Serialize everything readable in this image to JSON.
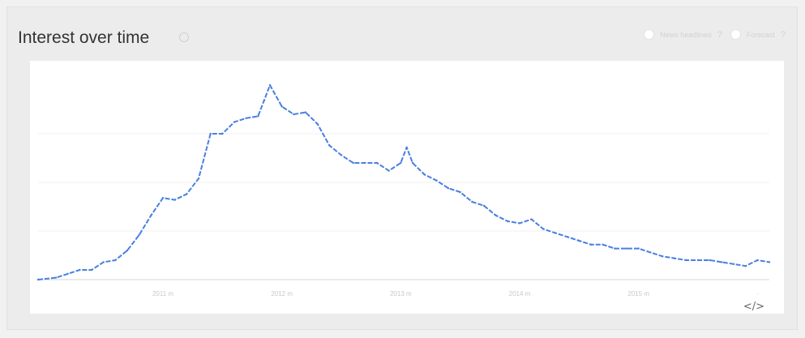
{
  "header": {
    "title": "Interest over time",
    "help_icon": "question-circle-icon",
    "controls": [
      {
        "label": "News headlines",
        "icon": "question-icon"
      },
      {
        "label": "Forecast",
        "icon": "question-icon"
      }
    ],
    "control_help_glyph": "?"
  },
  "footer": {
    "embed_icon": "embed-code-icon",
    "embed_glyph": "</>"
  },
  "colors": {
    "line": "#4a7fe0",
    "gridline": "#f2f2f2",
    "baseline": "#d6d6d6",
    "card_background": "#ececec",
    "plot_background": "#ffffff"
  },
  "chart_data": {
    "type": "line",
    "title": "Interest over time",
    "xlabel": "",
    "ylabel": "",
    "line_style": "dashed",
    "grid": true,
    "xlim": [
      2009.95,
      2016.1
    ],
    "ylim": [
      0,
      100
    ],
    "x_ticks": [
      {
        "x": 2011,
        "label": "2011 m"
      },
      {
        "x": 2012,
        "label": "2012 m"
      },
      {
        "x": 2013,
        "label": "2013 m"
      },
      {
        "x": 2014,
        "label": "2014 m"
      },
      {
        "x": 2015,
        "label": "2015 m"
      },
      {
        "x": 2016,
        "label": "·"
      }
    ],
    "series": [
      {
        "points": [
          [
            2009.95,
            0
          ],
          [
            2010.1,
            1
          ],
          [
            2010.2,
            3
          ],
          [
            2010.3,
            5
          ],
          [
            2010.4,
            5
          ],
          [
            2010.5,
            9
          ],
          [
            2010.6,
            10
          ],
          [
            2010.7,
            15
          ],
          [
            2010.8,
            23
          ],
          [
            2010.9,
            33
          ],
          [
            2011.0,
            42
          ],
          [
            2011.1,
            41
          ],
          [
            2011.2,
            44
          ],
          [
            2011.3,
            52
          ],
          [
            2011.4,
            75
          ],
          [
            2011.5,
            75
          ],
          [
            2011.6,
            81
          ],
          [
            2011.7,
            83
          ],
          [
            2011.8,
            84
          ],
          [
            2011.85,
            92
          ],
          [
            2011.9,
            100
          ],
          [
            2012.0,
            89
          ],
          [
            2012.1,
            85
          ],
          [
            2012.2,
            86
          ],
          [
            2012.3,
            80
          ],
          [
            2012.4,
            69
          ],
          [
            2012.5,
            64
          ],
          [
            2012.6,
            60
          ],
          [
            2012.7,
            60
          ],
          [
            2012.8,
            60
          ],
          [
            2012.9,
            56
          ],
          [
            2013.0,
            60
          ],
          [
            2013.05,
            68
          ],
          [
            2013.1,
            60
          ],
          [
            2013.2,
            54
          ],
          [
            2013.3,
            51
          ],
          [
            2013.4,
            47
          ],
          [
            2013.5,
            45
          ],
          [
            2013.6,
            40
          ],
          [
            2013.7,
            38
          ],
          [
            2013.8,
            33
          ],
          [
            2013.9,
            30
          ],
          [
            2014.0,
            29
          ],
          [
            2014.1,
            31
          ],
          [
            2014.2,
            26
          ],
          [
            2014.3,
            24
          ],
          [
            2014.4,
            22
          ],
          [
            2014.5,
            20
          ],
          [
            2014.6,
            18
          ],
          [
            2014.7,
            18
          ],
          [
            2014.8,
            16
          ],
          [
            2014.9,
            16
          ],
          [
            2015.0,
            16
          ],
          [
            2015.1,
            14
          ],
          [
            2015.2,
            12
          ],
          [
            2015.3,
            11
          ],
          [
            2015.4,
            10
          ],
          [
            2015.5,
            10
          ],
          [
            2015.6,
            10
          ],
          [
            2015.7,
            9
          ],
          [
            2015.8,
            8
          ],
          [
            2015.9,
            7
          ],
          [
            2016.0,
            10
          ],
          [
            2016.1,
            9
          ]
        ]
      }
    ]
  }
}
